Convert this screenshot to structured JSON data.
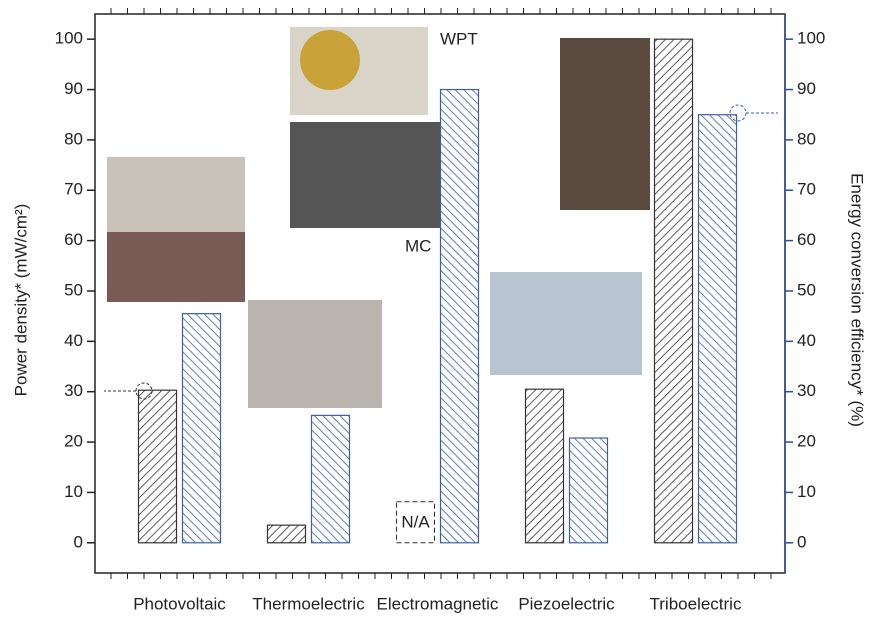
{
  "chart_data": {
    "type": "bar",
    "categories": [
      "Photovoltaic",
      "Thermoelectric",
      "Electromagnetic",
      "Piezoelectric",
      "Triboelectric"
    ],
    "series": [
      {
        "color": "#333333",
        "values": [
          30.3,
          3.5,
          null,
          30.5,
          100
        ]
      },
      {
        "color": "#3a5fa8",
        "values": [
          45.5,
          25.3,
          90,
          20.8,
          85
        ],
        "axis": "y2"
      }
    ],
    "ylabel": "Power density* (mW/cm²)",
    "y2label": "Energy conversion efficiency* (%)",
    "ylim": [
      -6,
      105
    ],
    "yticks": [
      0,
      10,
      20,
      30,
      40,
      50,
      60,
      70,
      80,
      90,
      100
    ],
    "y2lim": [
      -6,
      105
    ],
    "y2ticks": [
      0,
      10,
      20,
      30,
      40,
      50,
      60,
      70,
      80,
      90,
      100
    ],
    "y2color": "#2e4a9a",
    "annotations": [
      "WPT",
      "MC",
      "N/A"
    ]
  }
}
